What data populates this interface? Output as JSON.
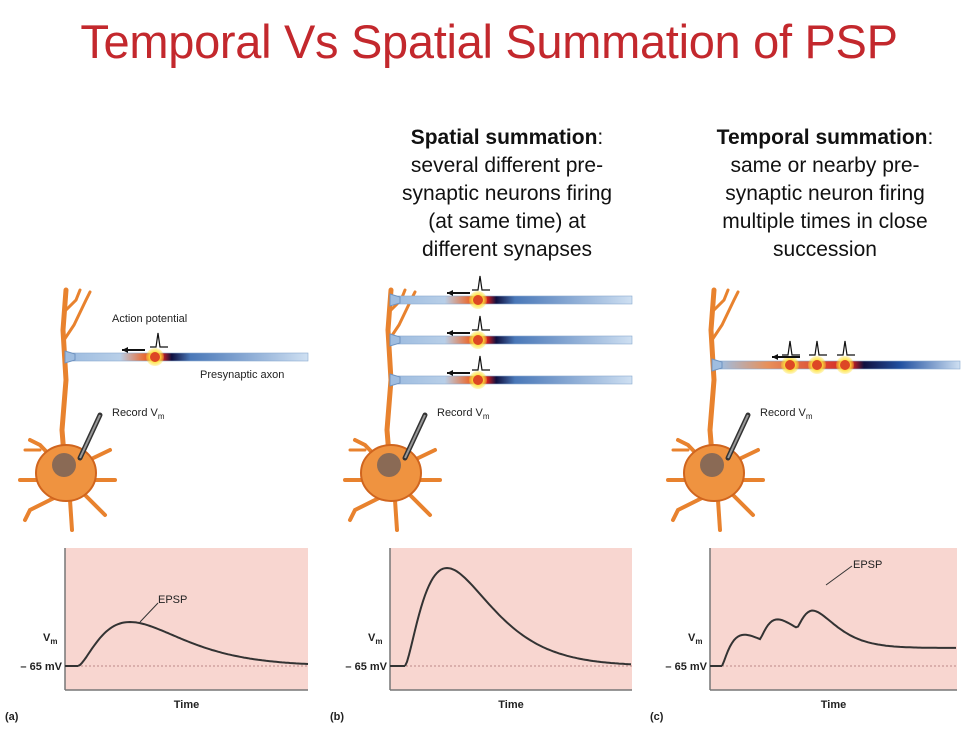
{
  "title": "Temporal Vs Spatial Summation of PSP",
  "spatial": {
    "heading": "Spatial summation",
    "lines": [
      ":",
      "several different pre-",
      "synaptic neurons firing",
      "(at same time) at",
      "different synapses"
    ]
  },
  "temporal": {
    "heading": "Temporal summation",
    "lines": [
      ":",
      "same or nearby pre-",
      "synaptic neuron firing",
      "multiple times in close",
      "succession"
    ]
  },
  "panel_a": {
    "action_potential": "Action potential",
    "presynaptic_axon": "Presynaptic axon",
    "record": "Record V",
    "record_sub": "m",
    "epsp": "EPSP",
    "vm": "V",
    "vm_sub": "m",
    "baseline": "– 65 mV",
    "time": "Time",
    "letter": "(a)"
  },
  "panel_b": {
    "record": "Record V",
    "record_sub": "m",
    "vm": "V",
    "vm_sub": "m",
    "baseline": "– 65 mV",
    "time": "Time",
    "letter": "(b)"
  },
  "panel_c": {
    "record": "Record V",
    "record_sub": "m",
    "epsp": "EPSP",
    "vm": "V",
    "vm_sub": "m",
    "baseline": "– 65 mV",
    "time": "Time",
    "letter": "(c)"
  },
  "colors": {
    "title": "#c3282d",
    "graph_bg": "#f8d6d0",
    "neuron": "#e8822e",
    "axon": "#a9c3e0"
  }
}
